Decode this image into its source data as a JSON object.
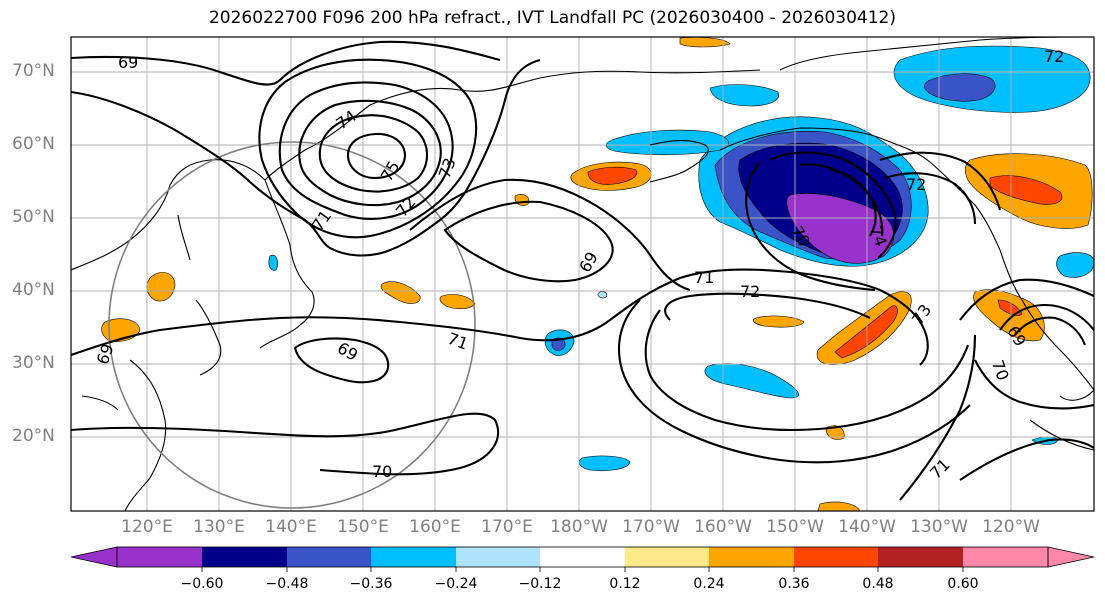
{
  "title": "2026022700 F096 200 hPa refract., IVT Landfall PC (2026030400 - 2026030412)",
  "lat_labels": [
    "70°N",
    "60°N",
    "50°N",
    "40°N",
    "30°N",
    "20°N"
  ],
  "lon_labels": [
    "120°E",
    "130°E",
    "140°E",
    "150°E",
    "160°E",
    "170°E",
    "180°W",
    "170°W",
    "160°W",
    "150°W",
    "140°W",
    "130°W",
    "120°W"
  ],
  "contour_labels": {
    "c69a": "69",
    "c74a": "74",
    "c75": "75",
    "c73a": "73",
    "c72a": "72",
    "c71a": "71",
    "c69b": "69",
    "c69c": "69",
    "c71b": "71",
    "c69d": "69",
    "c71c": "71",
    "c72b": "72",
    "c70a": "70",
    "c74b": "74",
    "c72c": "72",
    "c73b": "73",
    "c69e": "69",
    "c70b": "70",
    "c71d": "71",
    "c70c": "70",
    "c72d": "72"
  },
  "colorbar": {
    "ticks": [
      "−0.60",
      "−0.48",
      "−0.36",
      "−0.24",
      "−0.12",
      "0.12",
      "0.24",
      "0.36",
      "0.48",
      "0.60"
    ],
    "colors": [
      "#9932cc",
      "#00008b",
      "#3a54c8",
      "#00bfff",
      "#afe3fb",
      "#ffffff",
      "#fde98a",
      "#ffa500",
      "#ff4500",
      "#b22222",
      "#ff88aa"
    ]
  }
}
